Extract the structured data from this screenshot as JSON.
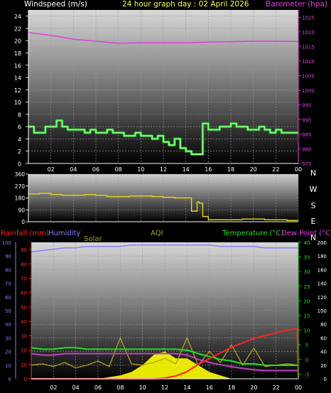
{
  "header": {
    "wind_title": "Windspeed (m/s)",
    "center_title": "24 hour graph day : 02 April 2026",
    "baro_title": "Barometer (hpa)"
  },
  "labels": {
    "rain": "Rainfall (mm)",
    "humidity": "Humidity",
    "solar": "Solar",
    "aqi": "AQI",
    "temperature": "Temperature (°C)",
    "dewpoint": "Dew Point (°C)"
  },
  "colors": {
    "wind": "#7CFF7C",
    "baro": "#E040E0",
    "direction": "#E0D020",
    "rain": "#FF2020",
    "humidity": "#8080FF",
    "solar": "#FFFF00",
    "aqi": "#B0A020",
    "temperature": "#20E020",
    "dewpoint": "#C040C0"
  },
  "chart_data": [
    {
      "type": "line",
      "series": [
        {
          "name": "Windspeed (m/s)",
          "x": [
            0,
            0.5,
            1,
            1.5,
            2,
            2.5,
            3,
            3.5,
            4,
            4.5,
            5,
            5.5,
            6,
            6.5,
            7,
            7.5,
            8,
            8.5,
            9,
            9.5,
            10,
            10.5,
            11,
            11.5,
            12,
            12.5,
            13,
            13.5,
            14,
            14.5,
            15,
            15.5,
            16,
            16.5,
            17,
            17.5,
            18,
            18.5,
            19,
            19.5,
            20,
            20.5,
            21,
            21.5,
            22,
            22.5,
            23,
            23.5,
            24
          ],
          "values": [
            6,
            5,
            5,
            6,
            6,
            7,
            6,
            5.5,
            5.5,
            5.5,
            5,
            5.5,
            5,
            5,
            5.5,
            5,
            5,
            4.5,
            4.5,
            5,
            4.5,
            4.5,
            4,
            4.5,
            3.5,
            3,
            4,
            2.5,
            2,
            1.5,
            1.5,
            6.5,
            5.5,
            5.5,
            6,
            6,
            6.5,
            6,
            6,
            5.5,
            5.5,
            6,
            5.5,
            5,
            5.5,
            5,
            5,
            5,
            5
          ]
        },
        {
          "name": "Barometer (hpa)",
          "x": [
            0,
            2,
            4,
            6,
            8,
            10,
            12,
            14,
            16,
            18,
            20,
            22,
            24
          ],
          "values": [
            1019.8,
            1018.8,
            1017.5,
            1016.8,
            1016.1,
            1016.3,
            1016.3,
            1016.3,
            1016.5,
            1016.6,
            1016.8,
            1016.8,
            1016.7
          ]
        }
      ],
      "x_ticks": [
        "02",
        "04",
        "06",
        "08",
        "10",
        "12",
        "14",
        "16",
        "18",
        "20",
        "22",
        "00"
      ],
      "y_ticks": [
        "0",
        "2",
        "4",
        "6",
        "8",
        "10",
        "12",
        "14",
        "16",
        "18",
        "20",
        "22",
        "24"
      ],
      "y2_ticks": [
        "975",
        "980",
        "985",
        "990",
        "995",
        "1000",
        "1005",
        "1010",
        "1015",
        "1020",
        "1025"
      ],
      "xlim": [
        0,
        24
      ],
      "ylim": [
        0,
        25
      ],
      "y2lim": [
        975,
        1027.5
      ],
      "grid": true
    },
    {
      "type": "line",
      "series": [
        {
          "name": "Wind direction",
          "x": [
            0,
            1,
            2,
            3,
            4,
            5,
            6,
            7,
            8,
            9,
            10,
            11,
            12,
            13,
            14,
            14.5,
            15,
            15.2,
            15.5,
            16,
            17,
            18,
            19,
            20,
            21,
            22,
            23,
            24
          ],
          "values": [
            210,
            215,
            205,
            200,
            200,
            205,
            200,
            190,
            190,
            195,
            195,
            190,
            185,
            180,
            180,
            80,
            150,
            140,
            40,
            15,
            15,
            15,
            20,
            20,
            15,
            15,
            10,
            10
          ]
        }
      ],
      "y_ticks": [
        "0",
        "90",
        "180",
        "270",
        "360"
      ],
      "direction_labels": [
        "N",
        "W",
        "S",
        "E",
        "N"
      ],
      "xlim": [
        0,
        24
      ],
      "ylim": [
        0,
        360
      ],
      "grid": true
    },
    {
      "type": "line",
      "series": [
        {
          "name": "Humidity",
          "x": [
            0,
            1,
            2,
            3,
            4,
            5,
            6,
            7,
            8,
            9,
            10,
            11,
            12,
            13,
            14,
            15,
            16,
            17,
            18,
            19,
            20,
            21,
            22,
            23,
            24
          ],
          "values": [
            93,
            94,
            95,
            96,
            96,
            97,
            97,
            97,
            97,
            98,
            98,
            98,
            98,
            98,
            98,
            98,
            98,
            97,
            97,
            97,
            97,
            96,
            96,
            96,
            96
          ]
        },
        {
          "name": "Temperature (°C)",
          "x": [
            0,
            1,
            2,
            3,
            4,
            5,
            6,
            7,
            8,
            9,
            10,
            11,
            12,
            13,
            14,
            15,
            16,
            17,
            18,
            19,
            20,
            21,
            22,
            23,
            24
          ],
          "values": [
            4,
            3.5,
            3.5,
            4,
            4,
            3.5,
            3.5,
            3.5,
            3.5,
            3.5,
            3.5,
            3.5,
            3.5,
            3.5,
            3.2,
            2,
            1,
            0,
            -0.5,
            -1.5,
            -1.5,
            -2,
            -2,
            -2,
            -2
          ]
        },
        {
          "name": "Dew Point (°C)",
          "x": [
            0,
            1,
            2,
            3,
            4,
            5,
            6,
            7,
            8,
            9,
            10,
            11,
            12,
            13,
            14,
            15,
            16,
            17,
            18,
            19,
            20,
            21,
            22,
            23,
            24
          ],
          "values": [
            2,
            1.5,
            1.5,
            2,
            2,
            2,
            2,
            2,
            2,
            2,
            2,
            2,
            2,
            2,
            1.5,
            0,
            -1,
            -1.8,
            -2.5,
            -3,
            -3.5,
            -3.8,
            -3.8,
            -3.8,
            -3.8
          ]
        },
        {
          "name": "Rainfall (mm)",
          "x": [
            0,
            1,
            2,
            3,
            4,
            5,
            6,
            7,
            8,
            9,
            10,
            11,
            12,
            13,
            14,
            15,
            16,
            17,
            18,
            19,
            20,
            21,
            22,
            23,
            23.9,
            24
          ],
          "values": [
            0,
            0,
            0,
            0,
            0,
            0,
            0,
            0,
            0,
            0,
            0,
            0,
            0.5,
            2,
            5,
            10,
            14,
            18,
            22,
            25,
            28,
            30,
            32,
            34,
            35,
            0
          ]
        },
        {
          "name": "Solar",
          "x": [
            0,
            6,
            8,
            9,
            10,
            11,
            12,
            13,
            14,
            15,
            16,
            17,
            18,
            24
          ],
          "values": [
            0,
            0,
            5,
            10,
            20,
            35,
            40,
            30,
            30,
            20,
            10,
            5,
            0,
            0
          ]
        },
        {
          "name": "AQI",
          "x": [
            0,
            1,
            2,
            3,
            4,
            5,
            6,
            7,
            8,
            9,
            10,
            11,
            12,
            13,
            14,
            15,
            16,
            17,
            18,
            19,
            20,
            21,
            22,
            23,
            24
          ],
          "values": [
            20,
            22,
            18,
            24,
            16,
            20,
            26,
            18,
            60,
            22,
            20,
            24,
            30,
            22,
            60,
            20,
            40,
            24,
            50,
            20,
            45,
            18,
            20,
            22,
            20
          ]
        }
      ],
      "x_ticks": [
        "02",
        "04",
        "06",
        "08",
        "10",
        "12",
        "14",
        "16",
        "18",
        "20",
        "22",
        "00"
      ],
      "y_ticks_hum": [
        "0",
        "10",
        "20",
        "30",
        "40",
        "50",
        "60",
        "70",
        "80",
        "90",
        "100"
      ],
      "y_ticks_rain": [
        "0",
        "10",
        "20",
        "30",
        "40",
        "50",
        "60",
        "70",
        "80",
        "90"
      ],
      "y_ticks_temp": [
        "-5",
        "0",
        "5",
        "10",
        "15",
        "20",
        "25",
        "30",
        "35",
        "40"
      ],
      "y_ticks_solar": [
        "0",
        "20",
        "40",
        "60",
        "80",
        "100",
        "120",
        "140",
        "160",
        "180",
        "200"
      ],
      "xlim": [
        0,
        24
      ],
      "temp_lim": [
        -6.6,
        40
      ],
      "rain_lim": [
        0,
        95
      ],
      "grid": true
    }
  ]
}
